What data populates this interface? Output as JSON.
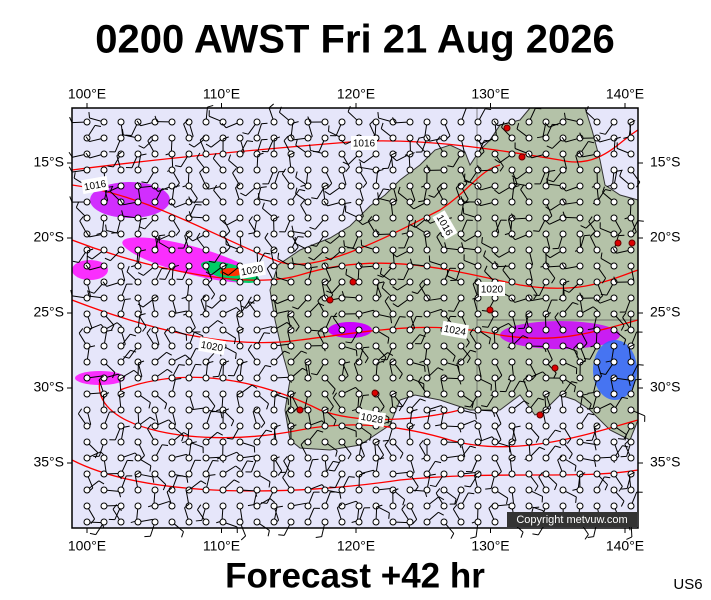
{
  "title": "0200 AWST Fri 21 Aug 2026",
  "footer": "Forecast +42 hr",
  "code": "US6",
  "copyright": "Copyright metvuw.com",
  "longitude_labels": [
    "100°E",
    "110°E",
    "120°E",
    "130°E",
    "140°E"
  ],
  "latitude_labels": [
    "15°S",
    "20°S",
    "25°S",
    "30°S",
    "35°S"
  ],
  "isobar_labels": [
    "1016",
    "1016",
    "1016",
    "1020",
    "1020",
    "1024",
    "1020",
    "1028"
  ]
}
